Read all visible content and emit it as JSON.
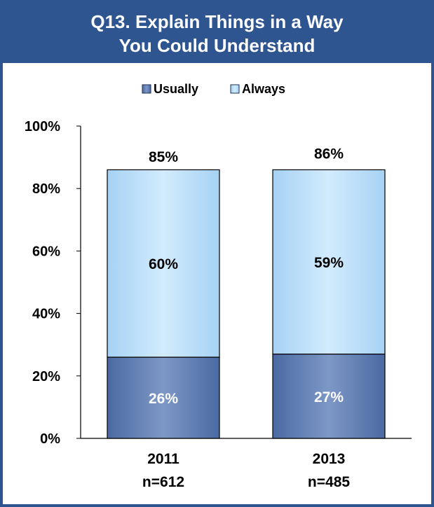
{
  "chart_data": {
    "type": "bar",
    "stacked": true,
    "title": "Q13.  Explain Things in a Way",
    "title_line2": "You Could Understand",
    "categories": [
      "2011",
      "2013"
    ],
    "category_sublabels": [
      "n=612",
      "n=485"
    ],
    "series": [
      {
        "name": "Usually",
        "values": [
          26,
          27
        ],
        "labels": [
          "26%",
          "27%"
        ]
      },
      {
        "name": "Always",
        "values": [
          60,
          59
        ],
        "labels": [
          "60%",
          "59%"
        ]
      }
    ],
    "totals": [
      85,
      86
    ],
    "total_labels": [
      "85%",
      "86%"
    ],
    "y_ticks": [
      "0%",
      "20%",
      "40%",
      "60%",
      "80%",
      "100%"
    ],
    "ylim": [
      0,
      100
    ],
    "grid": false,
    "legend_position": "top",
    "colors": {
      "usually": "#5f7fb3",
      "always": "#b3dcf8",
      "border": "#2e5590",
      "title_bg": "#2e5590"
    }
  }
}
